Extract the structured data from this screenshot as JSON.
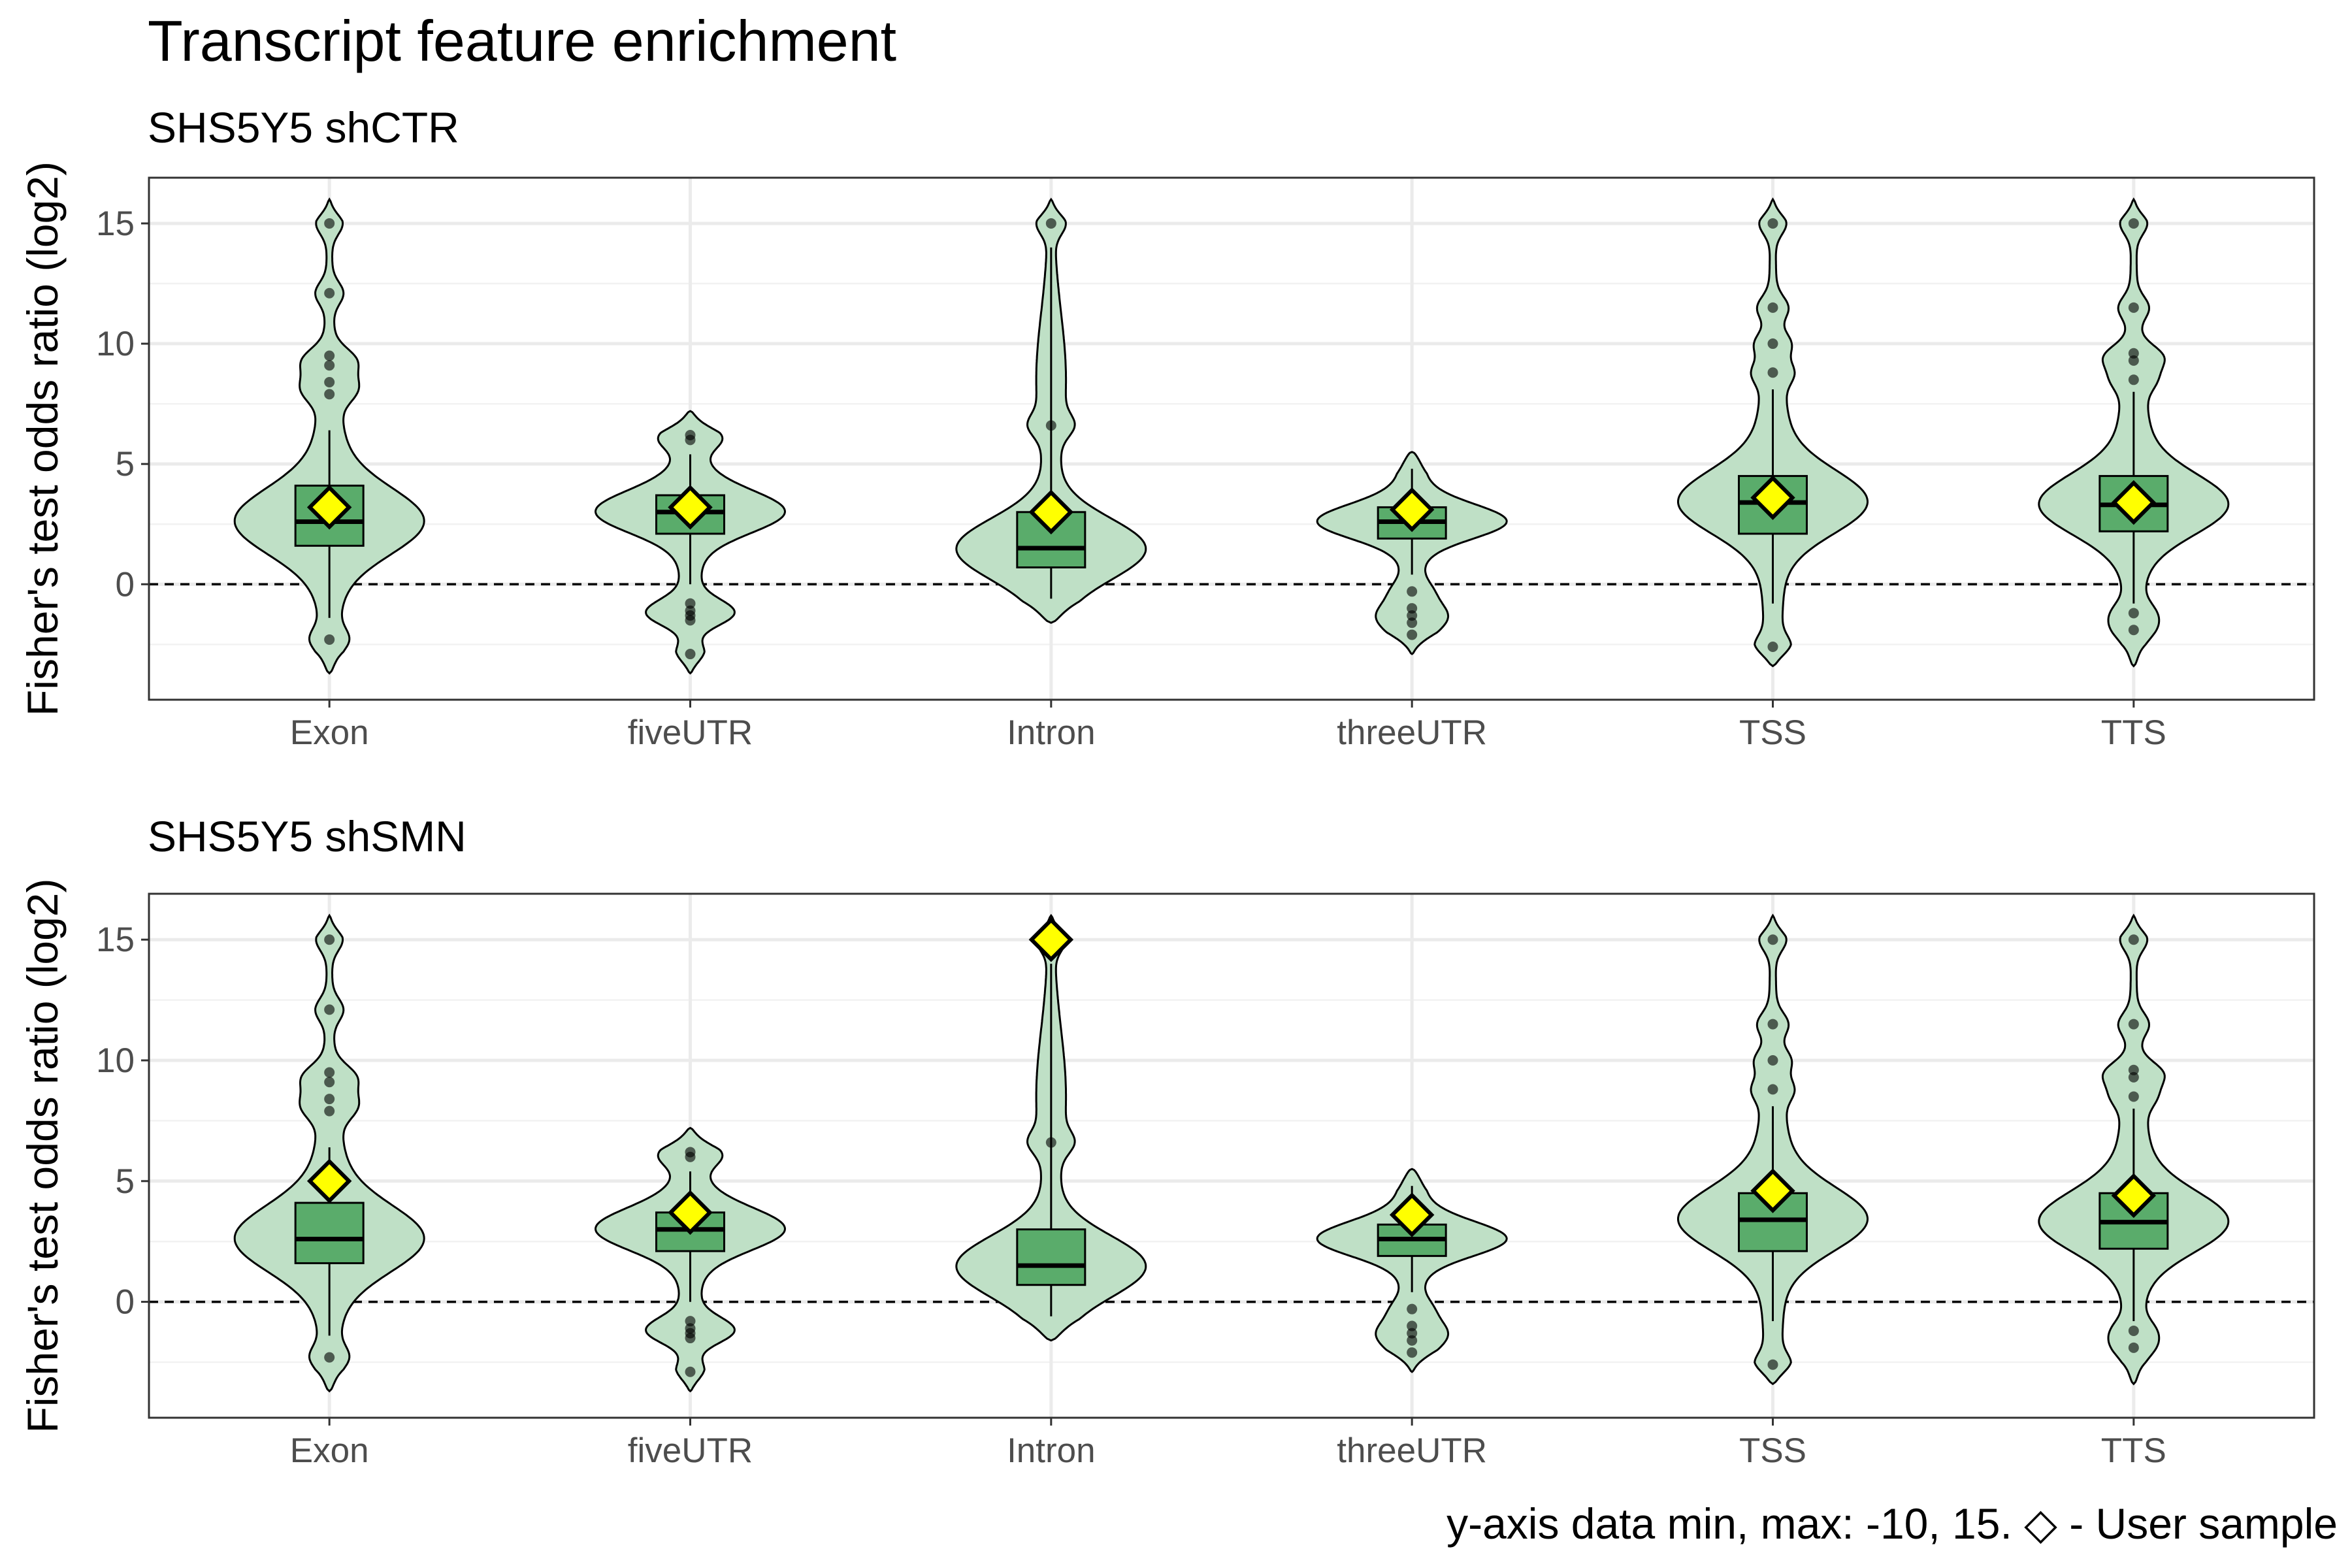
{
  "figure": {
    "title": "Transcript feature enrichment",
    "caption": "y-axis data min, max: -10, 15. ◇ - User sample"
  },
  "colors": {
    "violin_fill": "#bfe0c6",
    "box_fill": "#5aac6b",
    "user_marker": "#ffff00",
    "grid_major": "#ebebeb",
    "grid_minor": "#f2f2f2",
    "panel_border": "#333333",
    "outlier": "#000000"
  },
  "chart_data": [
    {
      "type": "violin",
      "subtitle": "SHS5Y5 shCTR",
      "ylabel": "Fisher's test odds ratio (log2)",
      "ylim": [
        -4.8,
        16.9
      ],
      "yticks": [
        0,
        5,
        10,
        15
      ],
      "reference_line": 0,
      "categories": [
        "Exon",
        "fiveUTR",
        "Intron",
        "threeUTR",
        "TSS",
        "TTS"
      ],
      "groups": [
        {
          "name": "Exon",
          "whisker_low": -1.4,
          "q1": 1.6,
          "median": 2.6,
          "q3": 4.1,
          "whisker_high": 6.4,
          "density_min": -3.7,
          "density_max": 16.0,
          "outliers": [
            -2.3,
            7.9,
            8.4,
            9.1,
            9.5,
            12.1,
            15.0
          ],
          "user_value": 3.2
        },
        {
          "name": "fiveUTR",
          "whisker_low": 0.0,
          "q1": 2.1,
          "median": 3.0,
          "q3": 3.7,
          "whisker_high": 5.4,
          "density_min": -3.7,
          "density_max": 7.2,
          "outliers": [
            -2.9,
            -1.5,
            -1.3,
            -1.1,
            -0.8,
            6.0,
            6.2
          ],
          "user_value": 3.2
        },
        {
          "name": "Intron",
          "whisker_low": -0.6,
          "q1": 0.7,
          "median": 1.5,
          "q3": 3.0,
          "whisker_high": 14.0,
          "density_min": -1.6,
          "density_max": 16.0,
          "outliers": [
            6.6,
            15.0
          ],
          "user_value": 3.0
        },
        {
          "name": "threeUTR",
          "whisker_low": 0.4,
          "q1": 1.9,
          "median": 2.6,
          "q3": 3.2,
          "whisker_high": 4.8,
          "density_min": -2.9,
          "density_max": 5.5,
          "outliers": [
            -2.1,
            -1.6,
            -1.3,
            -1.0,
            -0.3
          ],
          "user_value": 3.1
        },
        {
          "name": "TSS",
          "whisker_low": -0.8,
          "q1": 2.1,
          "median": 3.4,
          "q3": 4.5,
          "whisker_high": 8.1,
          "density_min": -3.4,
          "density_max": 16.0,
          "outliers": [
            -2.6,
            8.8,
            10.0,
            11.5,
            15.0
          ],
          "user_value": 3.6
        },
        {
          "name": "TTS",
          "whisker_low": -0.8,
          "q1": 2.2,
          "median": 3.3,
          "q3": 4.5,
          "whisker_high": 8.0,
          "density_min": -3.4,
          "density_max": 16.0,
          "outliers": [
            -1.9,
            -1.2,
            8.5,
            9.3,
            9.6,
            11.5,
            15.0
          ],
          "user_value": 3.4
        }
      ]
    },
    {
      "type": "violin",
      "subtitle": "SHS5Y5 shSMN",
      "ylabel": "Fisher's test odds ratio (log2)",
      "ylim": [
        -4.8,
        16.9
      ],
      "yticks": [
        0,
        5,
        10,
        15
      ],
      "reference_line": 0,
      "categories": [
        "Exon",
        "fiveUTR",
        "Intron",
        "threeUTR",
        "TSS",
        "TTS"
      ],
      "groups": [
        {
          "name": "Exon",
          "whisker_low": -1.4,
          "q1": 1.6,
          "median": 2.6,
          "q3": 4.1,
          "whisker_high": 6.4,
          "density_min": -3.7,
          "density_max": 16.0,
          "outliers": [
            -2.3,
            7.9,
            8.4,
            9.1,
            9.5,
            12.1,
            15.0
          ],
          "user_value": 5.0
        },
        {
          "name": "fiveUTR",
          "whisker_low": 0.0,
          "q1": 2.1,
          "median": 3.0,
          "q3": 3.7,
          "whisker_high": 5.4,
          "density_min": -3.7,
          "density_max": 7.2,
          "outliers": [
            -2.9,
            -1.5,
            -1.3,
            -1.1,
            -0.8,
            6.0,
            6.2
          ],
          "user_value": 3.7
        },
        {
          "name": "Intron",
          "whisker_low": -0.6,
          "q1": 0.7,
          "median": 1.5,
          "q3": 3.0,
          "whisker_high": 14.0,
          "density_min": -1.6,
          "density_max": 16.0,
          "outliers": [
            6.6,
            15.0
          ],
          "user_value": 15.0
        },
        {
          "name": "threeUTR",
          "whisker_low": 0.4,
          "q1": 1.9,
          "median": 2.6,
          "q3": 3.2,
          "whisker_high": 4.8,
          "density_min": -2.9,
          "density_max": 5.5,
          "outliers": [
            -2.1,
            -1.6,
            -1.3,
            -1.0,
            -0.3
          ],
          "user_value": 3.6
        },
        {
          "name": "TSS",
          "whisker_low": -0.8,
          "q1": 2.1,
          "median": 3.4,
          "q3": 4.5,
          "whisker_high": 8.1,
          "density_min": -3.4,
          "density_max": 16.0,
          "outliers": [
            -2.6,
            8.8,
            10.0,
            11.5,
            15.0
          ],
          "user_value": 4.6
        },
        {
          "name": "TTS",
          "whisker_low": -0.8,
          "q1": 2.2,
          "median": 3.3,
          "q3": 4.5,
          "whisker_high": 8.0,
          "density_min": -3.4,
          "density_max": 16.0,
          "outliers": [
            -1.9,
            -1.2,
            8.5,
            9.3,
            9.6,
            11.5,
            15.0
          ],
          "user_value": 4.4
        }
      ]
    }
  ]
}
